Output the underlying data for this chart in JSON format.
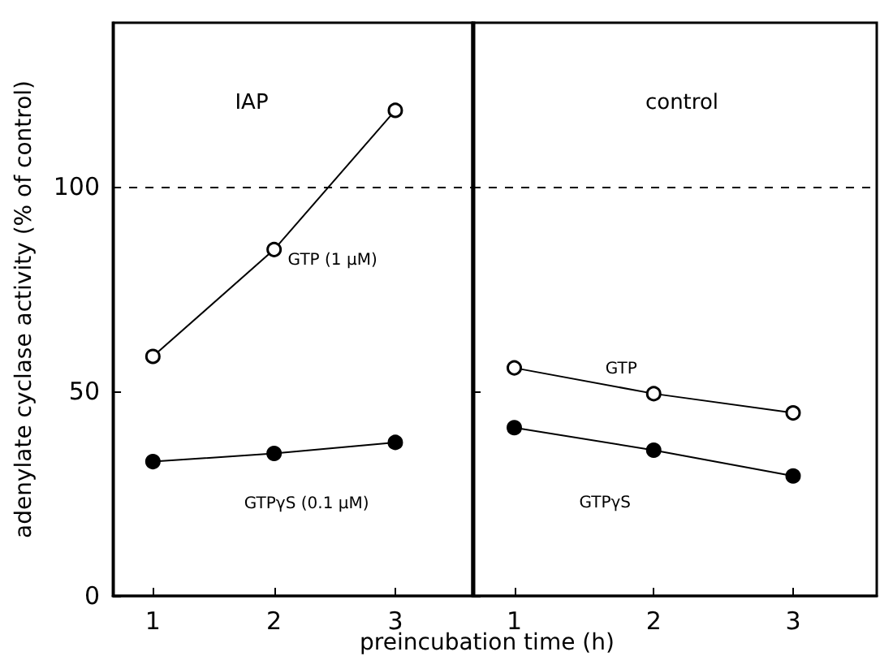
{
  "chart_data": [
    {
      "type": "line",
      "title": "IAP",
      "ylabel": "adenylate cyclase activity (% of control)",
      "xlabel": "preincubation time (h)",
      "x": [
        1,
        2,
        3
      ],
      "series": [
        {
          "name": "GTP (1 µM)",
          "color": "#000000",
          "marker": "circle-open",
          "values": [
            58.5,
            84.6,
            118.6
          ]
        },
        {
          "name": "GTPγS (0.1 µM)",
          "color": "#000000",
          "marker": "circle",
          "values": [
            32.8,
            34.8,
            37.5
          ]
        }
      ],
      "xlim": [
        0.67,
        3.65
      ],
      "xticks": [
        1,
        2,
        3
      ],
      "ylim": [
        0,
        140
      ],
      "yticks": [
        0,
        50,
        100
      ],
      "ref_lines": [
        {
          "axis": "y",
          "value": 100,
          "line_style": "dashed"
        }
      ],
      "grid": false,
      "legend": false
    },
    {
      "type": "line",
      "title": "control",
      "x": [
        1,
        2,
        3
      ],
      "series": [
        {
          "name": "GTP",
          "color": "#000000",
          "marker": "circle-open",
          "values": [
            55.7,
            49.4,
            44.7
          ]
        },
        {
          "name": "GTPγS",
          "color": "#000000",
          "marker": "circle",
          "values": [
            41.1,
            35.6,
            29.3
          ]
        }
      ],
      "xlim": [
        0.7,
        3.6
      ],
      "xticks": [
        1,
        2,
        3
      ],
      "ylim": [
        0,
        140
      ],
      "yticks": [
        0,
        50,
        100
      ],
      "tick_labels": "x",
      "ref_lines": [
        {
          "axis": "y",
          "value": 100,
          "line_style": "dashed"
        }
      ],
      "grid": false,
      "legend": false
    }
  ]
}
